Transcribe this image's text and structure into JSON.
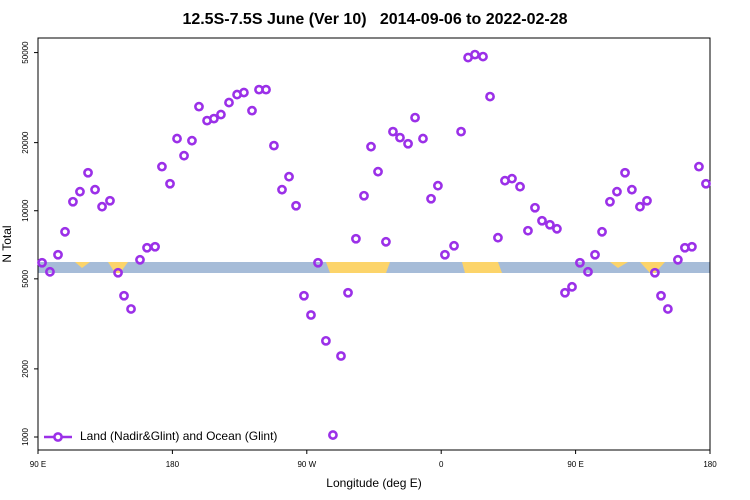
{
  "chart_data": {
    "type": "scatter",
    "title": "12.5S-7.5S June (Ver 10)   2014-09-06 to 2022-02-28",
    "x_label": "Longitude (deg E)",
    "y_label": "N Total",
    "y_log": true,
    "legend": "bottom-left",
    "xlim": [
      90,
      540
    ],
    "xticks": [
      {
        "value": 90,
        "label": "90 E"
      },
      180,
      {
        "value": 270,
        "label": "90 W"
      },
      {
        "value": 360,
        "label": "0"
      },
      {
        "value": 450,
        "label": "90 E"
      },
      {
        "value": 540,
        "label": "180"
      }
    ],
    "ylim": [
      876,
      58000
    ],
    "yticks": [
      1000,
      2000,
      5000,
      10000,
      20000,
      50000
    ],
    "series": [
      {
        "name": "Land (Nadir&Glint) and Ocean (Glint)",
        "color": "#9b30e8",
        "x": [
          92.7,
          98.0,
          103.4,
          108.1,
          113.4,
          118.1,
          123.5,
          128.2,
          132.9,
          138.2,
          143.6,
          147.6,
          152.3,
          158.3,
          163.0,
          168.4,
          173.0,
          178.4,
          183.1,
          187.8,
          193.1,
          197.8,
          203.2,
          207.8,
          212.5,
          217.9,
          223.3,
          227.9,
          233.3,
          238.0,
          242.7,
          248.0,
          253.4,
          258.1,
          262.8,
          268.1,
          272.8,
          277.5,
          282.8,
          287.5,
          292.9,
          297.6,
          302.9,
          308.3,
          313.0,
          317.7,
          323.0,
          327.7,
          332.4,
          337.8,
          342.5,
          347.8,
          353.2,
          357.8,
          362.5,
          368.6,
          373.3,
          378.0,
          382.6,
          388.0,
          392.7,
          398.0,
          402.7,
          407.4,
          412.8,
          418.1,
          422.8,
          427.5,
          432.8,
          437.5,
          442.9,
          447.6,
          452.9,
          458.3,
          463.0,
          467.7,
          473.0,
          477.7,
          483.1,
          487.7,
          493.1,
          497.8,
          503.1,
          507.2,
          511.8,
          518.5,
          523.2,
          527.9,
          532.6,
          537.3
        ],
        "values": [
          5890,
          5370,
          6390,
          8070,
          10960,
          12140,
          14720,
          12390,
          10420,
          11070,
          5320,
          4210,
          3680,
          6070,
          6860,
          6930,
          15660,
          13160,
          20840,
          17510,
          20400,
          28840,
          25020,
          25530,
          26610,
          30060,
          32610,
          33290,
          27690,
          34290,
          34290,
          19400,
          12390,
          14140,
          10520,
          4210,
          3460,
          5890,
          2660,
          1020,
          2280,
          4340,
          7520,
          11650,
          19190,
          14880,
          7290,
          22370,
          21040,
          19770,
          25800,
          20840,
          11300,
          12900,
          6390,
          7000,
          22370,
          47530,
          48980,
          48000,
          31950,
          7600,
          13580,
          13860,
          12770,
          8160,
          10310,
          9030,
          8670,
          8320,
          4340,
          4610,
          5890,
          5370,
          6390,
          8070,
          10960,
          12140,
          14720,
          12390,
          10420,
          11070,
          5320,
          4210,
          3680,
          6070,
          6860,
          6930,
          15660,
          13160
        ]
      }
    ]
  }
}
